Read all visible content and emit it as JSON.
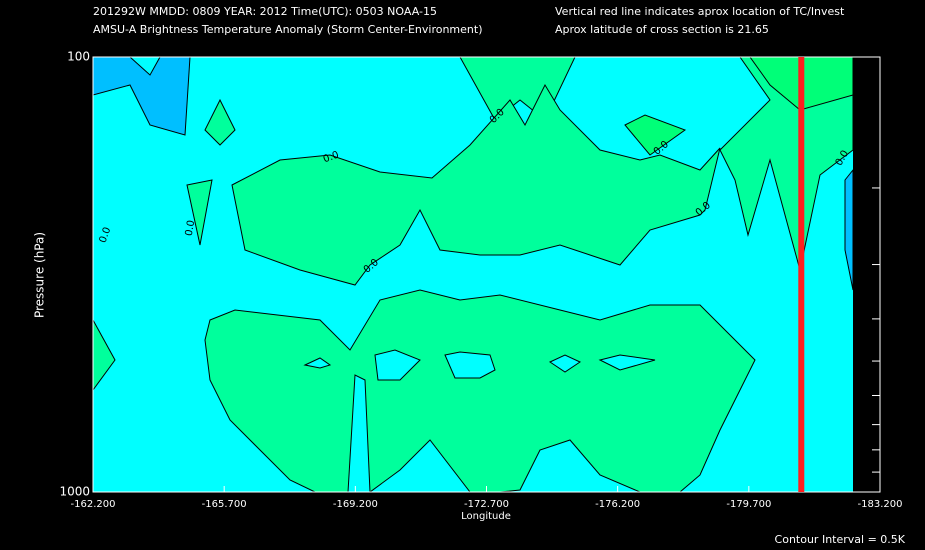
{
  "chart_data": {
    "type": "contour",
    "header_left": [
      "201292W  MMDD: 0809 YEAR: 2012 Time(UTC): 0503 NOAA-15",
      "AMSU-A Brightness Temperature Anomaly (Storm Center-Environment)"
    ],
    "header_right": [
      "Vertical red line indicates aprox location of TC/Invest",
      "Aprox latitude of cross section is 21.65"
    ],
    "x_label": "Longitude",
    "y_label": "Pressure (hPa)",
    "xlim": [
      -162.2,
      -183.2
    ],
    "xticks": [
      {
        "value": -162.2,
        "label": "-162.200"
      },
      {
        "value": -165.7,
        "label": "-165.700"
      },
      {
        "value": -169.2,
        "label": "-169.200"
      },
      {
        "value": -172.7,
        "label": "-172.700"
      },
      {
        "value": -176.2,
        "label": "-176.200"
      },
      {
        "value": -179.7,
        "label": "-179.700"
      },
      {
        "value": -183.2,
        "label": "-183.200"
      }
    ],
    "ylim": [
      1000,
      100
    ],
    "yticks": [
      100,
      1000
    ],
    "yminor_ticks": [
      200,
      300,
      400,
      500,
      600,
      700,
      800,
      900
    ],
    "y_log": true,
    "tc_longitude": -181.1,
    "tc_line_color": "#ff1e1e",
    "contour_labels": [
      "0.0",
      "0.0",
      "0.0",
      "0.0",
      "0.0",
      "0.0",
      "0.0",
      "0.0"
    ],
    "footer": "Contour Interval = 0.5K"
  }
}
